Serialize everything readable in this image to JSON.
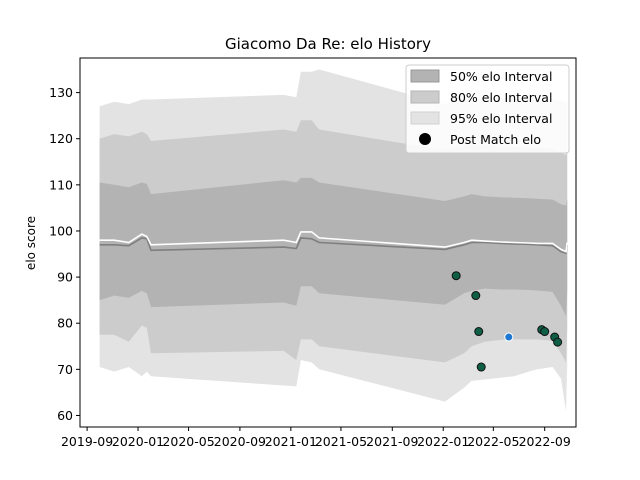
{
  "chart_data": {
    "type": "line",
    "title": "Giacomo Da Re: elo History",
    "xlabel": "",
    "ylabel": "elo score",
    "ylim": [
      57.5,
      137.5
    ],
    "xlim": [
      "2019-08-15",
      "2022-11-15"
    ],
    "x_ticks": [
      "2019-09",
      "2020-01",
      "2020-05",
      "2020-09",
      "2021-01",
      "2021-05",
      "2021-09",
      "2022-01",
      "2022-05",
      "2022-09"
    ],
    "y_ticks": [
      60,
      70,
      80,
      90,
      100,
      110,
      120,
      130
    ],
    "grid": false,
    "legend_position": "top-right",
    "legend": {
      "band50": "50% elo Interval",
      "band80": "80% elo Interval",
      "band95": "95% elo Interval",
      "points": "Post Match elo"
    },
    "colors": {
      "band50": "#b3b3b3",
      "band80": "#cccccc",
      "band95": "#e3e3e3",
      "mean_line": "#7f7f7f",
      "white_line": "#ffffff",
      "point_fill": "#0f5e46",
      "highlight_fill": "#1f77d4"
    },
    "dates": [
      "2019-10-01",
      "2019-11-05",
      "2019-12-10",
      "2020-01-10",
      "2020-01-22",
      "2020-02-01",
      "2020-12-15",
      "2021-01-14",
      "2021-01-25",
      "2021-02-20",
      "2021-03-10",
      "2022-01-05",
      "2022-02-20",
      "2022-03-10",
      "2022-04-10",
      "2022-05-20",
      "2022-06-20",
      "2022-07-25",
      "2022-08-15",
      "2022-09-20",
      "2022-10-10",
      "2022-10-22",
      "2022-10-25"
    ],
    "mean": [
      97,
      97,
      96.8,
      98.5,
      98.3,
      95.8,
      96.5,
      96.2,
      98.5,
      98.3,
      97.5,
      96,
      97,
      97.5,
      97.5,
      97.3,
      97.2,
      97.1,
      97,
      96.8,
      95.5,
      95.2,
      97
    ],
    "white_line": [
      98,
      98,
      97.5,
      99.3,
      98.8,
      97,
      98,
      97.5,
      99.8,
      99.8,
      98.5,
      96.5,
      97.5,
      98,
      97.8,
      97.6,
      97.5,
      97.4,
      97.3,
      97.3,
      96,
      95.5,
      97.5
    ],
    "band50_upper": [
      110.5,
      110,
      109.5,
      110.5,
      110.2,
      108,
      111,
      110.5,
      111.5,
      111.5,
      110.5,
      106.5,
      107.5,
      108,
      107.5,
      107.3,
      107.2,
      107.1,
      107,
      106.8,
      105.8,
      105.5,
      107
    ],
    "band50_lower": [
      85,
      86,
      85.5,
      87,
      86.5,
      83.5,
      84.5,
      83.8,
      88,
      88,
      86.5,
      84,
      86.5,
      87,
      87.5,
      87.3,
      87.3,
      87.2,
      87.1,
      86.8,
      83.8,
      81.5,
      87
    ],
    "band80_upper": [
      120,
      121,
      120.5,
      121.5,
      121,
      119.5,
      122,
      121.5,
      124,
      124,
      122,
      117.5,
      118.5,
      118.8,
      118.5,
      118.3,
      118.2,
      118.1,
      118,
      117.8,
      116.8,
      116.5,
      117
    ],
    "band80_lower": [
      77.5,
      77.5,
      76,
      79.5,
      79,
      73.5,
      74,
      72,
      76.5,
      76.5,
      75,
      71.5,
      73.5,
      75,
      76,
      76.4,
      76.5,
      76.5,
      76.5,
      76.2,
      73.5,
      71.5,
      79
    ],
    "band95_upper": [
      127,
      128,
      127.5,
      128.5,
      128.5,
      128.5,
      129.5,
      129,
      134.5,
      134.5,
      135,
      127.5,
      128.5,
      128.8,
      128.8,
      128.8,
      128.8,
      128.8,
      128.8,
      128.6,
      128.2,
      128,
      128
    ],
    "band95_lower": [
      70.5,
      69.5,
      70.5,
      68.5,
      69.5,
      68.5,
      66.5,
      66.3,
      72,
      71.5,
      70,
      63,
      66,
      67.5,
      67.8,
      68.2,
      68.5,
      69.5,
      70,
      70.5,
      68,
      61,
      71
    ],
    "points": [
      {
        "x": "2022-02-01",
        "y": 90.3
      },
      {
        "x": "2022-03-20",
        "y": 86
      },
      {
        "x": "2022-03-27",
        "y": 78.2
      },
      {
        "x": "2022-04-02",
        "y": 70.5
      },
      {
        "x": "2022-06-07",
        "y": 77,
        "highlight": true
      },
      {
        "x": "2022-08-25",
        "y": 78.6
      },
      {
        "x": "2022-09-01",
        "y": 78.2
      },
      {
        "x": "2022-09-25",
        "y": 77
      },
      {
        "x": "2022-10-02",
        "y": 75.9
      }
    ]
  }
}
